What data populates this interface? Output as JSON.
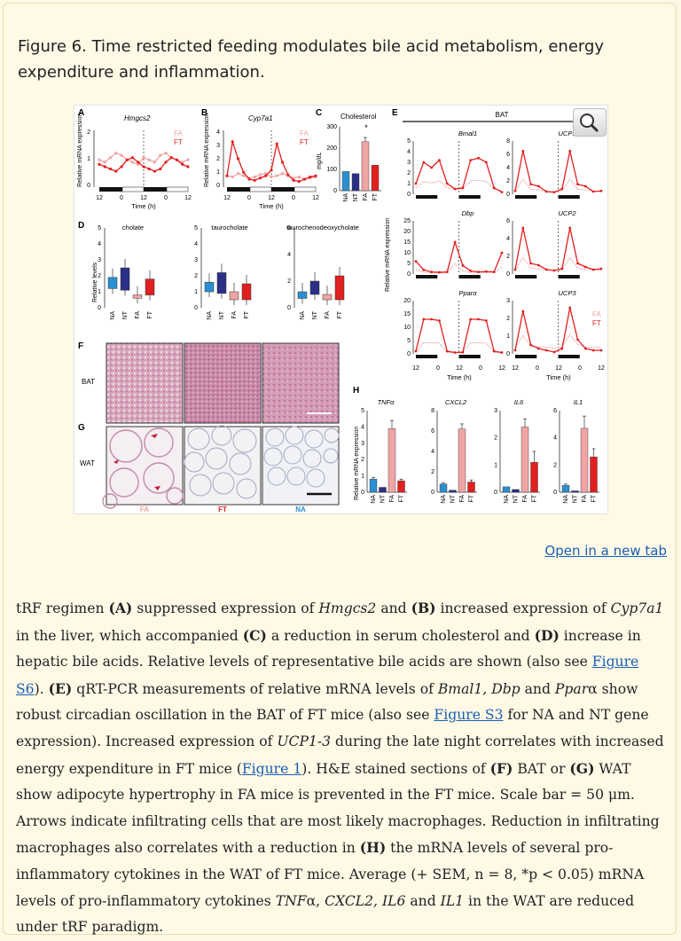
{
  "figure": {
    "title": "Figure 6. Time restricted feeding modulates bile acid metabolism, energy expenditure and inflammation.",
    "open_link": "Open in a new tab"
  },
  "panels": {
    "A": {
      "label": "A",
      "gene": "Hmgcs2",
      "ylabel": "Relative mRNA expression",
      "xlabel": "Time (h)",
      "yticks": [
        "0",
        "1",
        "2"
      ],
      "xticks": [
        "12",
        "0",
        "12",
        "0",
        "12"
      ]
    },
    "B": {
      "label": "B",
      "gene": "Cyp7a1",
      "ylabel": "Relative mRNA expression",
      "xlabel": "Time (h)",
      "yticks": [
        "0",
        "1",
        "2",
        "3",
        "4"
      ],
      "xticks": [
        "12",
        "0",
        "12",
        "0",
        "12"
      ]
    },
    "C": {
      "label": "C",
      "title": "Cholesterol",
      "ylabel": "mg/dL",
      "yticks": [
        "0",
        "100",
        "200",
        "300"
      ],
      "cats": [
        "NA",
        "NT",
        "FA",
        "FT"
      ],
      "star": "*"
    },
    "D": {
      "label": "D",
      "ylabel": "Relative levels",
      "cats": [
        "NA",
        "NT",
        "FA",
        "FT"
      ],
      "sub": [
        {
          "title": "cholate",
          "yticks": [
            "0",
            "1",
            "2",
            "3",
            "4",
            "5"
          ]
        },
        {
          "title": "taurocholate",
          "yticks": [
            "0",
            "1",
            "2",
            "3",
            "4",
            "5"
          ]
        },
        {
          "title": "taurochenodeoxycholate",
          "yticks": [
            "0",
            "2",
            "4",
            "6"
          ]
        }
      ]
    },
    "E": {
      "label": "E",
      "header": "BAT",
      "ylabel": "Relative mRNA expression",
      "xlabel": "Time (h)",
      "xticks": [
        "12",
        "0",
        "12",
        "0",
        "12"
      ],
      "genes": [
        {
          "name": "Bmal1",
          "yticks": [
            "0",
            "1",
            "2",
            "3",
            "4",
            "5"
          ]
        },
        {
          "name": "UCP1",
          "yticks": [
            "0",
            "2",
            "4",
            "6",
            "8"
          ]
        },
        {
          "name": "Dbp",
          "yticks": [
            "0",
            "5",
            "10",
            "15",
            "20",
            "25"
          ]
        },
        {
          "name": "UCP2",
          "yticks": [
            "0",
            "2",
            "4",
            "6"
          ]
        },
        {
          "name": "Pparα",
          "yticks": [
            "0",
            "5",
            "10",
            "15",
            "20"
          ]
        },
        {
          "name": "UCP3",
          "yticks": [
            "0",
            "1",
            "2",
            "3"
          ]
        }
      ]
    },
    "F": {
      "label": "F",
      "tissue": "BAT"
    },
    "G": {
      "label": "G",
      "tissue": "WAT",
      "groups": [
        "FA",
        "FT",
        "NA"
      ]
    },
    "H": {
      "label": "H",
      "ylabel": "Relative mRNA expression",
      "cats": [
        "NA",
        "NT",
        "FA",
        "FT"
      ],
      "sub": [
        {
          "title": "TNFα",
          "yticks": [
            "0",
            "1",
            "2",
            "3",
            "4",
            "5"
          ]
        },
        {
          "title": "CXCL2",
          "yticks": [
            "0",
            "2",
            "4",
            "6",
            "8"
          ]
        },
        {
          "title": "IL6",
          "yticks": [
            "0",
            "1",
            "2",
            "3"
          ]
        },
        {
          "title": "IL1",
          "yticks": [
            "0",
            "2",
            "4",
            "6"
          ]
        }
      ]
    }
  },
  "legend": {
    "fa": "FA",
    "ft": "FT"
  },
  "colors": {
    "NA": "#2a8fd0",
    "NT": "#2b2f86",
    "FA": "#f0a4a4",
    "FT": "#e02020"
  },
  "chart_data": [
    {
      "type": "bar",
      "title": "Cholesterol",
      "ylabel": "mg/dL",
      "categories": [
        "NA",
        "NT",
        "FA",
        "FT"
      ],
      "values": [
        90,
        80,
        230,
        120
      ],
      "ylim": [
        0,
        300
      ]
    },
    {
      "type": "bar",
      "title": "TNFα",
      "categories": [
        "NA",
        "NT",
        "FA",
        "FT"
      ],
      "values": [
        0.8,
        0.3,
        3.9,
        0.7
      ],
      "ylim": [
        0,
        5
      ]
    },
    {
      "type": "bar",
      "title": "CXCL2",
      "categories": [
        "NA",
        "NT",
        "FA",
        "FT"
      ],
      "values": [
        0.8,
        0.2,
        6.2,
        1.0
      ],
      "ylim": [
        0,
        8
      ]
    },
    {
      "type": "bar",
      "title": "IL6",
      "categories": [
        "NA",
        "NT",
        "FA",
        "FT"
      ],
      "values": [
        0.2,
        0.1,
        2.4,
        1.1
      ],
      "ylim": [
        0,
        3
      ]
    },
    {
      "type": "bar",
      "title": "IL1",
      "categories": [
        "NA",
        "NT",
        "FA",
        "FT"
      ],
      "values": [
        0.5,
        0.1,
        4.7,
        2.6
      ],
      "ylim": [
        0,
        6
      ]
    },
    {
      "type": "line",
      "title": "Hmgcs2",
      "x": [
        0,
        1,
        2,
        3,
        4,
        5,
        6,
        7,
        8,
        9,
        10,
        11,
        12,
        13,
        14,
        15,
        16
      ],
      "series": [
        {
          "name": "FA",
          "values": [
            1.2,
            1.1,
            1.3,
            1.5,
            1.4,
            1.2,
            1.1,
            1.0,
            1.3,
            1.2,
            1.1,
            1.4,
            1.5,
            1.3,
            1.2,
            1.1,
            1.2
          ]
        },
        {
          "name": "FT",
          "values": [
            1.0,
            0.9,
            0.8,
            0.7,
            0.9,
            1.2,
            1.3,
            1.1,
            0.9,
            0.8,
            0.7,
            0.8,
            1.1,
            1.3,
            1.2,
            1.0,
            0.9
          ]
        }
      ],
      "ylim": [
        0,
        2.5
      ]
    },
    {
      "type": "line",
      "title": "Cyp7a1",
      "x": [
        0,
        1,
        2,
        3,
        4,
        5,
        6,
        7,
        8,
        9,
        10,
        11,
        12,
        13,
        14,
        15,
        16
      ],
      "series": [
        {
          "name": "FA",
          "values": [
            1.0,
            0.9,
            1.2,
            1.0,
            0.8,
            0.9,
            1.1,
            1.2,
            0.9,
            1.0,
            1.2,
            1.0,
            0.8,
            0.9,
            0.7,
            0.8,
            0.9
          ]
        },
        {
          "name": "FT",
          "values": [
            1.0,
            4.0,
            2.5,
            1.3,
            0.7,
            0.6,
            0.8,
            1.0,
            1.5,
            3.8,
            2.2,
            1.1,
            0.6,
            0.5,
            0.7,
            0.9,
            1.0
          ]
        }
      ],
      "ylim": [
        0,
        5
      ]
    }
  ],
  "caption": {
    "p1": "tRF regimen ",
    "A": "(A)",
    "p2": " suppressed expression of ",
    "g1": "Hmgcs2",
    "p3": " and ",
    "B": "(B)",
    "p4": " increased expression of ",
    "g2": "Cyp7a1",
    "p5": " in the liver, which accompanied ",
    "C": "(C)",
    "p6": " a reduction in serum cholesterol and ",
    "D": "(D)",
    "p7": " increase in hepatic bile acids. Relative levels of representative bile acids are shown (also see ",
    "l1": "Figure S6",
    "p8": "). ",
    "E": "(E)",
    "p9": " qRT-PCR measurements of relative mRNA levels of ",
    "g3": "Bmal1, Dbp",
    "p10": " and ",
    "g4": "Ppar",
    "p11": "α show robust circadian oscillation in the BAT of FT mice (also see ",
    "l2": "Figure S3",
    "p12": " for NA and NT gene expression). Increased expression of ",
    "g5": "UCP1-3",
    "p13": " during the late night correlates with increased energy expenditure in FT mice (",
    "l3": "Figure 1",
    "p14": "). H&E stained sections of ",
    "F": "(F)",
    "p15": " BAT or ",
    "G": "(G)",
    "p16": " WAT show adipocyte hypertrophy in FA mice is prevented in the FT mice. Scale bar = 50 μm. Arrows indicate infiltrating cells that are most likely macrophages. Reduction in infiltrating macrophages also correlates with a reduction in ",
    "H": "(H)",
    "p17": " the mRNA levels of several pro-inflammatory cytokines in the WAT of FT mice. Average (+ SEM, n = 8, *p < 0.05) mRNA levels of pro-inflammatory cytokines ",
    "g6": "TNF",
    "p18": "α, ",
    "g7": "CXCL2, IL6",
    "p19": " and ",
    "g8": "IL1",
    "p20": " in the WAT are reduced under tRF paradigm."
  }
}
